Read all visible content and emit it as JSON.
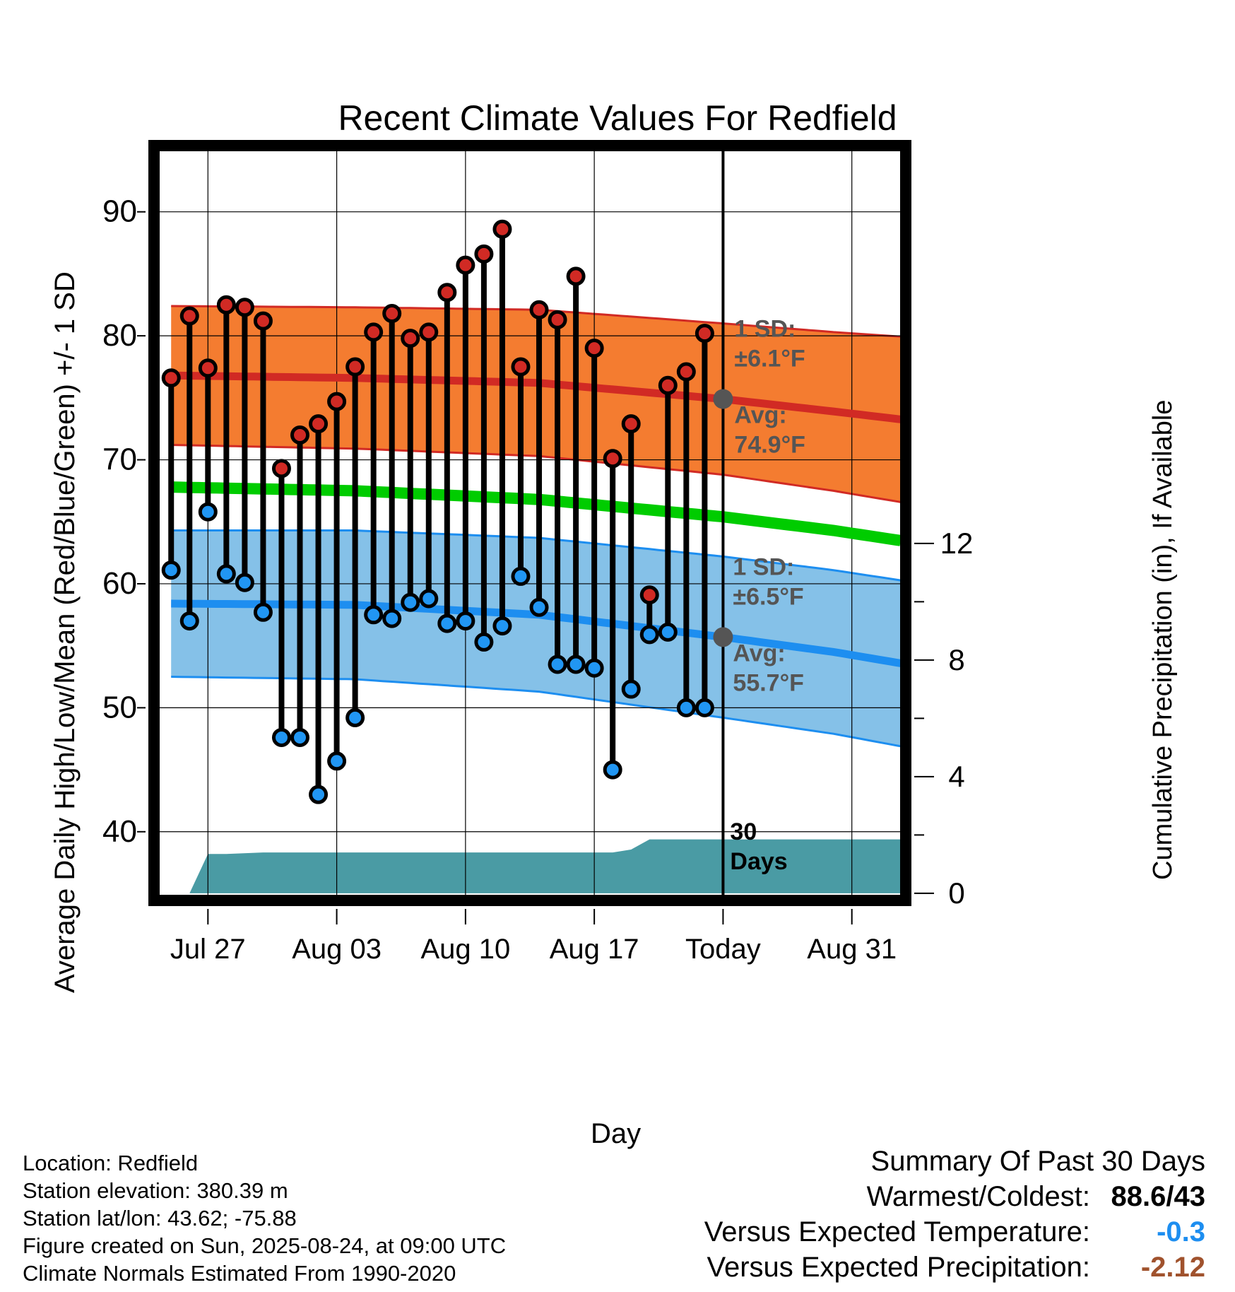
{
  "chart_data": {
    "type": "line",
    "title": "Recent Climate Values For Redfield",
    "xlabel": "Day",
    "ylabel_left": "Average Daily High/Low/Mean (Red/Blue/Green) +/- 1 SD",
    "ylabel_right": "Cumulative Precipitation (in), If Available",
    "x_ticks": [
      {
        "day": 2,
        "label": "Jul 27"
      },
      {
        "day": 9,
        "label": "Aug 03"
      },
      {
        "day": 16,
        "label": "Aug 10"
      },
      {
        "day": 23,
        "label": "Aug 17"
      },
      {
        "day": 30,
        "label": "Today"
      },
      {
        "day": 37,
        "label": "Aug 31"
      }
    ],
    "xlim": [
      -0.7,
      39.7
    ],
    "ylim_left": [
      34.8,
      95
    ],
    "y_ticks_left": [
      40,
      50,
      60,
      70,
      80,
      90
    ],
    "ylim_right": [
      -0.1,
      25.5
    ],
    "y_ticks_right": [
      0,
      4,
      8,
      12
    ],
    "grid": true,
    "daily_high": [
      76.6,
      81.6,
      77.4,
      82.5,
      82.3,
      81.2,
      69.3,
      72.0,
      72.9,
      74.7,
      77.5,
      80.3,
      81.8,
      79.8,
      80.3,
      83.5,
      85.7,
      86.6,
      88.6,
      77.5,
      82.1,
      81.3,
      84.8,
      79.0,
      70.1,
      72.9,
      59.1,
      76.0,
      77.1,
      80.2
    ],
    "daily_low": [
      61.1,
      57.0,
      65.8,
      60.8,
      60.1,
      57.7,
      47.6,
      47.6,
      43.0,
      45.7,
      49.2,
      57.5,
      57.2,
      58.5,
      58.8,
      56.8,
      57.0,
      55.3,
      56.6,
      60.6,
      58.1,
      53.5,
      53.5,
      53.2,
      45.0,
      51.5,
      55.9,
      56.1,
      50.0,
      50.0
    ],
    "normal_high": {
      "days": [
        0,
        10,
        20,
        30,
        36,
        40
      ],
      "values": [
        76.8,
        76.6,
        76.2,
        74.9,
        73.9,
        73.2
      ]
    },
    "normal_low": {
      "days": [
        0,
        10,
        20,
        30,
        36,
        40
      ],
      "values": [
        58.4,
        58.3,
        57.5,
        55.7,
        54.5,
        53.5
      ]
    },
    "normal_mean": {
      "days": [
        0,
        10,
        20,
        30,
        36,
        40
      ],
      "values": [
        67.8,
        67.5,
        66.8,
        65.4,
        64.3,
        63.4
      ]
    },
    "high_band_sd": {
      "days": [
        0,
        10,
        20,
        30,
        36,
        40
      ],
      "values": [
        5.6,
        5.7,
        5.9,
        6.1,
        6.4,
        6.7
      ]
    },
    "low_band_sd": {
      "days": [
        0,
        10,
        20,
        30,
        36,
        40
      ],
      "values": [
        5.9,
        6.0,
        6.2,
        6.5,
        6.6,
        6.7
      ]
    },
    "precip_cumulative": {
      "days": [
        1,
        2,
        3,
        5,
        15,
        24,
        25,
        26,
        29,
        30,
        40
      ],
      "values": [
        0,
        1.35,
        1.35,
        1.4,
        1.4,
        1.4,
        1.5,
        1.85,
        1.85,
        1.85,
        1.85
      ]
    },
    "colors": {
      "high_band": "#f47c30",
      "high_line": "#d12a24",
      "low_band": "#85c1e8",
      "low_line": "#1d8ef0",
      "mean_line": "#00cc00",
      "precip": "#4a9ba4",
      "high_dot": "#d12a24",
      "low_dot": "#2196f3",
      "normal_marker": "#555555"
    },
    "annotations": {
      "today_day": 30,
      "high_sd_label": "1 SD:",
      "high_sd_value": "±6.1°F",
      "high_avg_label": "Avg:",
      "high_avg_value": "74.9°F",
      "low_sd_label": "1 SD:",
      "low_sd_value": "±6.5°F",
      "low_avg_label": "Avg:",
      "low_avg_value": "55.7°F",
      "precip_period_1": "30",
      "precip_period_2": "Days"
    }
  },
  "footer": {
    "location": "Location: Redfield",
    "elevation": "Station elevation: 380.39 m",
    "latlon": "Station lat/lon: 43.62; -75.88",
    "created": "Figure created on Sun, 2025-08-24, at 09:00 UTC",
    "normals": "Climate Normals Estimated From 1990-2020"
  },
  "summary": {
    "heading": "Summary Of Past 30 Days",
    "warm_cold_label": "Warmest/Coldest:",
    "warm_cold_value": "88.6/43",
    "temp_label": "Versus Expected Temperature:",
    "temp_value": "-0.3",
    "temp_color": "#1d8ef0",
    "precip_label": "Versus Expected Precipitation:",
    "precip_value": "-2.12",
    "precip_color": "#a0522d"
  }
}
